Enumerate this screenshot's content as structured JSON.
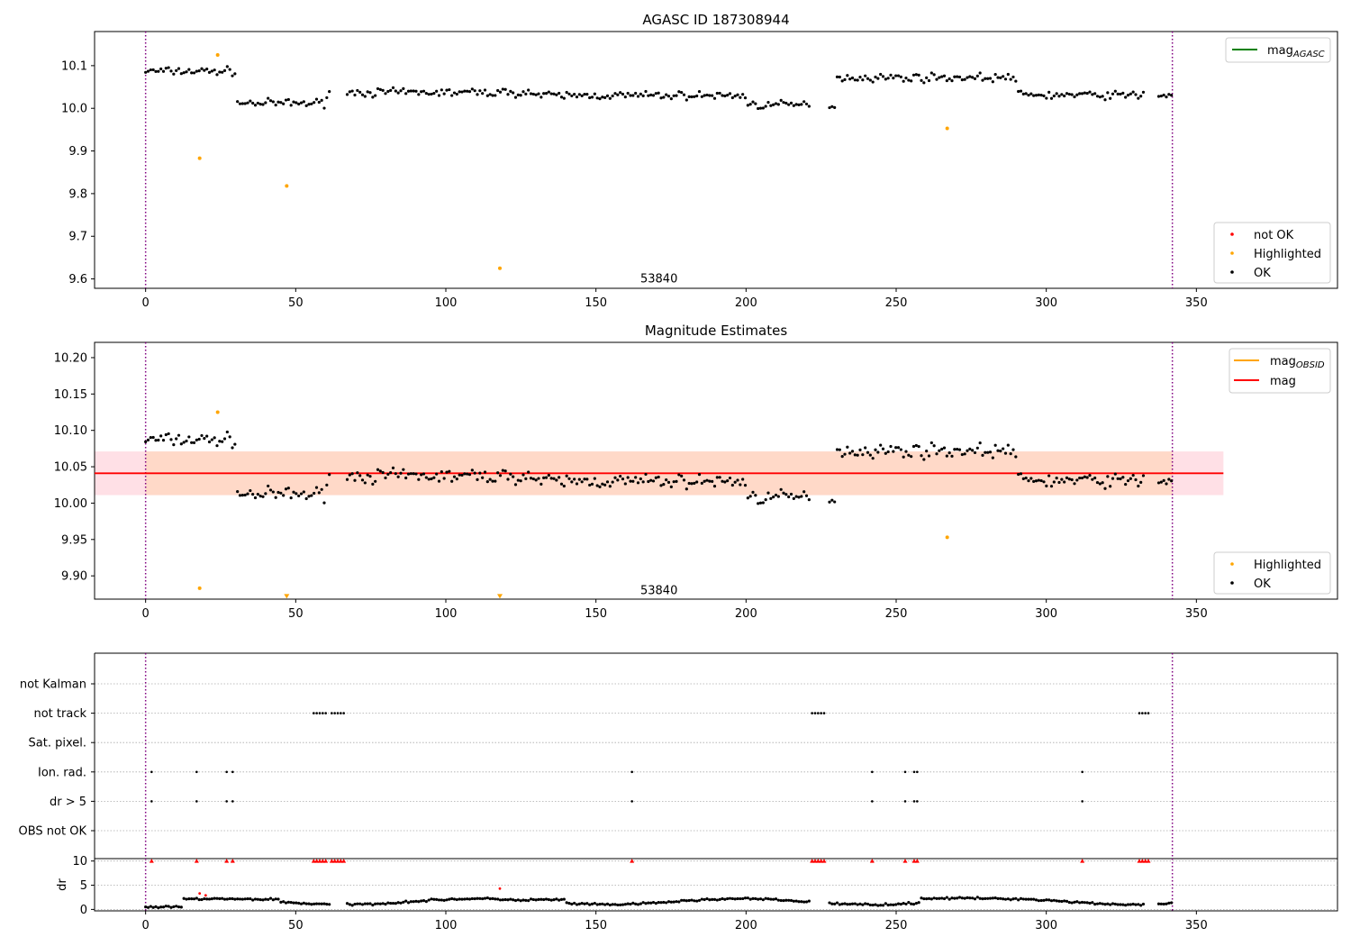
{
  "chart_data": [
    {
      "type": "scatter",
      "title": "AGASC ID 187308944",
      "xlabel": "",
      "ylabel": "",
      "xlim": [
        -17,
        397
      ],
      "ylim": [
        9.578,
        10.18
      ],
      "x_ticks": [
        0,
        50,
        100,
        150,
        200,
        250,
        300,
        350
      ],
      "y_ticks": [
        9.6,
        9.7,
        9.8,
        9.9,
        10.0,
        10.1
      ],
      "y_tick_labels": [
        "9.6",
        "9.7",
        "9.8",
        "9.9",
        "10.0",
        "10.1"
      ],
      "vlines": [
        0,
        342
      ],
      "annotation": {
        "x": 171,
        "y": 9.6,
        "text": "53840"
      },
      "line_legend": [
        {
          "name": "mag",
          "sub": "AGASC",
          "color": "#008000"
        }
      ],
      "marker_legend": [
        {
          "name": "not OK",
          "color": "#ff0000"
        },
        {
          "name": "Highlighted",
          "color": "#ffa500"
        },
        {
          "name": "OK",
          "color": "#000000"
        }
      ],
      "series": [
        {
          "name": "Highlighted",
          "color": "#ffa500",
          "x": [
            18,
            24,
            47,
            118,
            267
          ],
          "y": [
            9.883,
            10.125,
            9.818,
            9.625,
            9.953
          ]
        }
      ]
    },
    {
      "type": "scatter",
      "title": "Magnitude Estimates",
      "xlabel": "",
      "ylabel": "",
      "xlim": [
        -17,
        397
      ],
      "ylim": [
        9.868,
        10.221
      ],
      "x_ticks": [
        0,
        50,
        100,
        150,
        200,
        250,
        300,
        350
      ],
      "y_ticks": [
        9.9,
        9.95,
        10.0,
        10.05,
        10.1,
        10.15,
        10.2
      ],
      "y_tick_labels": [
        "9.90",
        "9.95",
        "10.00",
        "10.05",
        "10.10",
        "10.15",
        "10.20"
      ],
      "vlines": [
        0,
        342
      ],
      "annotation": {
        "x": 171,
        "y": 9.88,
        "text": "53840"
      },
      "mag_line": {
        "value": 10.041,
        "x_range": [
          -17,
          359
        ],
        "band": [
          10.011,
          10.071
        ]
      },
      "line_legend": [
        {
          "name": "mag",
          "sub": "OBSID",
          "color": "#ffa500"
        },
        {
          "name": "mag",
          "sub": "",
          "color": "#ff0000"
        }
      ],
      "marker_legend": [
        {
          "name": "Highlighted",
          "color": "#ffa500"
        },
        {
          "name": "OK",
          "color": "#000000"
        }
      ],
      "series": [
        {
          "name": "Highlighted",
          "color": "#ffa500",
          "x": [
            18,
            24,
            267
          ],
          "y": [
            9.883,
            10.125,
            9.953
          ]
        },
        {
          "name": "Highlighted (off scale)",
          "color": "#ffa500",
          "marker": "triangle-down",
          "x": [
            47,
            118
          ],
          "y": [
            9.87,
            9.87
          ]
        }
      ]
    },
    {
      "type": "scatter",
      "title": "",
      "xlabel": "",
      "ylabel": "",
      "xlim": [
        -17,
        397
      ],
      "categories": [
        "not Kalman",
        "not track",
        "Sat. pixel.",
        "Ion. rad.",
        "dr > 5",
        "OBS not OK"
      ],
      "vlines": [
        0,
        342
      ],
      "flags": [
        {
          "category": "not Kalman",
          "x": []
        },
        {
          "category": "not track",
          "x": [
            56,
            57,
            58,
            59,
            60,
            62,
            63,
            64,
            65,
            66,
            222,
            223,
            224,
            225,
            226,
            331,
            332,
            333,
            334
          ]
        },
        {
          "category": "Sat. pixel.",
          "x": []
        },
        {
          "category": "Ion. rad.",
          "x": [
            2,
            17,
            27,
            29,
            162,
            242,
            253,
            256,
            257,
            312
          ]
        },
        {
          "category": "dr > 5",
          "x": [
            2,
            17,
            27,
            29,
            162,
            242,
            253,
            256,
            257,
            312
          ]
        },
        {
          "category": "OBS not OK",
          "x": []
        }
      ]
    },
    {
      "type": "scatter",
      "title": "",
      "xlabel": "",
      "ylabel": "dr",
      "xlim": [
        -17,
        397
      ],
      "ylim": [
        -0.3,
        10.5
      ],
      "x_ticks": [
        0,
        50,
        100,
        150,
        200,
        250,
        300,
        350
      ],
      "x_tick_labels": [
        "0",
        "50",
        "100",
        "150",
        "200",
        "250",
        "300",
        "350"
      ],
      "y_ticks": [
        0,
        5,
        10
      ],
      "y_tick_labels": [
        "0",
        "5",
        "10"
      ],
      "vlines": [
        0,
        342
      ],
      "series": [
        {
          "name": "not OK (clipped)",
          "color": "#ff0000",
          "marker": "triangle-up",
          "x": [
            2,
            17,
            27,
            29,
            56,
            57,
            58,
            59,
            60,
            62,
            63,
            64,
            65,
            66,
            162,
            222,
            223,
            224,
            225,
            226,
            242,
            253,
            256,
            257,
            312,
            331,
            332,
            333,
            334
          ],
          "y": [
            10,
            10,
            10,
            10,
            10,
            10,
            10,
            10,
            10,
            10,
            10,
            10,
            10,
            10,
            10,
            10,
            10,
            10,
            10,
            10,
            10,
            10,
            10,
            10,
            10,
            10,
            10,
            10,
            10
          ]
        },
        {
          "name": "not OK",
          "color": "#ff0000",
          "x": [
            18,
            20,
            118
          ],
          "y": [
            3.3,
            2.9,
            4.3
          ]
        }
      ]
    }
  ]
}
